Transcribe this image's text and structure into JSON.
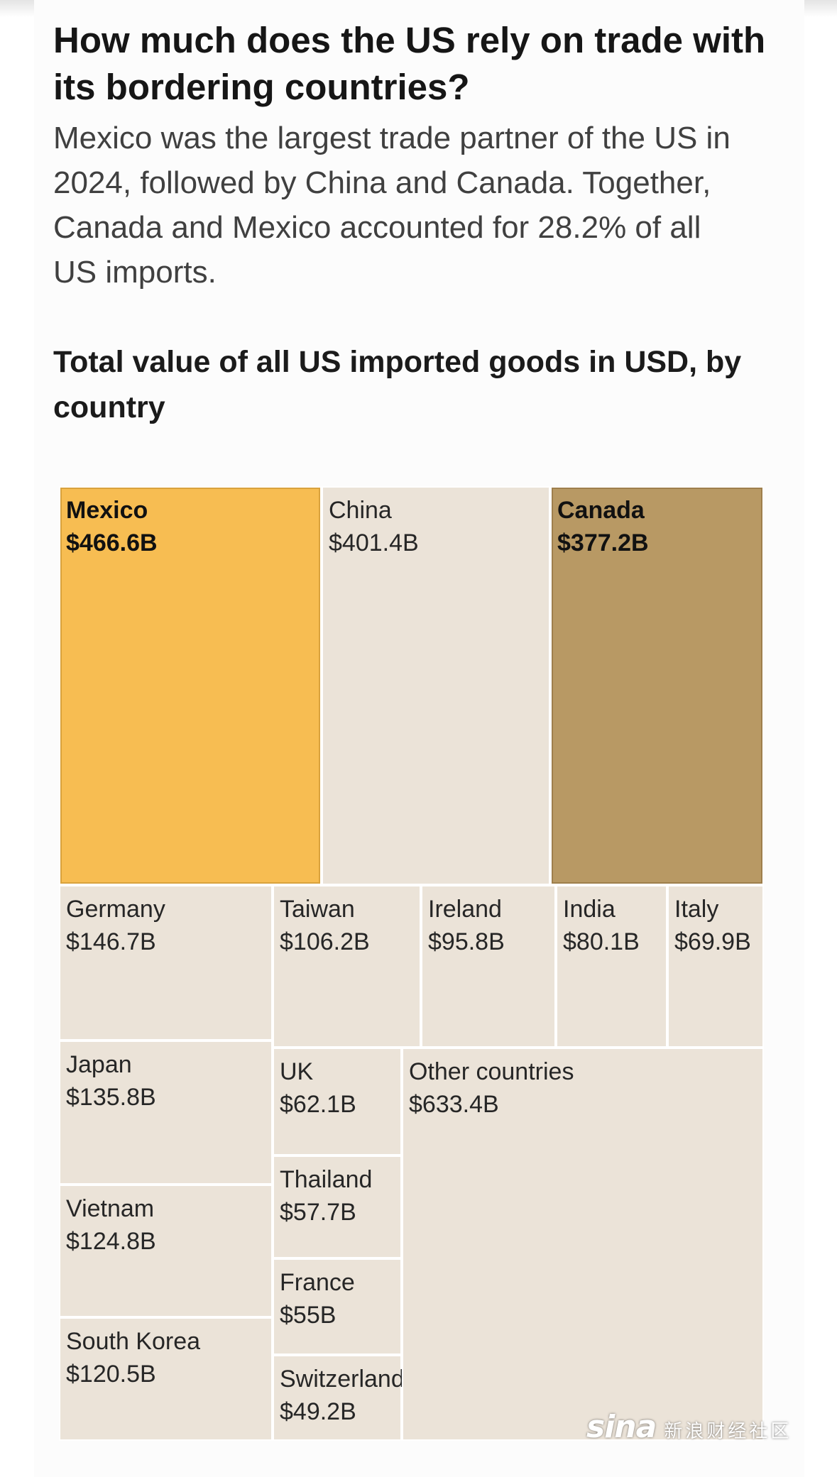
{
  "headline": "How much does the US rely on trade with its bordering countries?",
  "dek": "Mexico was the largest trade partner of the US in 2024, followed by China and Canada. Together, Canada and Mexico accounted for 28.2% of all US imports.",
  "subhead": "Total value of all US imported goods in USD, by country",
  "watermark": {
    "logo": "sina",
    "text": "新浪财经社区"
  },
  "colors": {
    "mexico": "#f7bd52",
    "canada": "#b89964",
    "other": "#ebe3d8",
    "border_mexico": "#d9a23d",
    "border_canada": "#9e7f4c"
  },
  "chart_data": {
    "type": "treemap",
    "unit": "USD billions",
    "items": [
      {
        "name": "Mexico",
        "label": "$466.6B",
        "value": 466.6,
        "highlight": "mexico"
      },
      {
        "name": "China",
        "label": "$401.4B",
        "value": 401.4,
        "highlight": ""
      },
      {
        "name": "Canada",
        "label": "$377.2B",
        "value": 377.2,
        "highlight": "canada"
      },
      {
        "name": "Germany",
        "label": "$146.7B",
        "value": 146.7,
        "highlight": ""
      },
      {
        "name": "Taiwan",
        "label": "$106.2B",
        "value": 106.2,
        "highlight": ""
      },
      {
        "name": "Ireland",
        "label": "$95.8B",
        "value": 95.8,
        "highlight": ""
      },
      {
        "name": "India",
        "label": "$80.1B",
        "value": 80.1,
        "highlight": ""
      },
      {
        "name": "Italy",
        "label": "$69.9B",
        "value": 69.9,
        "highlight": ""
      },
      {
        "name": "Japan",
        "label": "$135.8B",
        "value": 135.8,
        "highlight": ""
      },
      {
        "name": "Vietnam",
        "label": "$124.8B",
        "value": 124.8,
        "highlight": ""
      },
      {
        "name": "South Korea",
        "label": "$120.5B",
        "value": 120.5,
        "highlight": ""
      },
      {
        "name": "UK",
        "label": "$62.1B",
        "value": 62.1,
        "highlight": ""
      },
      {
        "name": "Thailand",
        "label": "$57.7B",
        "value": 57.7,
        "highlight": ""
      },
      {
        "name": "France",
        "label": "$55B",
        "value": 55.0,
        "highlight": ""
      },
      {
        "name": "Switzerland",
        "label": "$49.2B",
        "value": 49.2,
        "highlight": ""
      },
      {
        "name": "Other countries",
        "label": "$633.4B",
        "value": 633.4,
        "highlight": ""
      }
    ]
  }
}
